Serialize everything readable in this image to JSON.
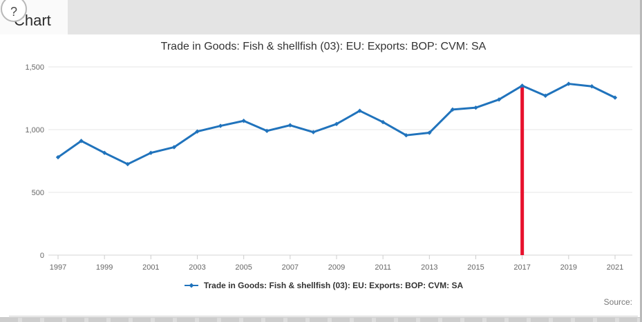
{
  "page": {
    "heading": "Chart",
    "help_icon": "?",
    "source_label": "Source:"
  },
  "chart_data": {
    "type": "line",
    "title": "Trade in Goods: Fish & shellfish (03): EU: Exports: BOP: CVM: SA",
    "legend": "Trade in Goods: Fish & shellfish (03): EU: Exports: BOP: CVM: SA",
    "legend_position": "bottom",
    "xlabel": "",
    "ylabel": "",
    "grid": true,
    "x": [
      1997,
      1998,
      1999,
      2000,
      2001,
      2002,
      2003,
      2004,
      2005,
      2006,
      2007,
      2008,
      2009,
      2010,
      2011,
      2012,
      2013,
      2014,
      2015,
      2016,
      2017,
      2018,
      2019,
      2020,
      2021
    ],
    "values": [
      780,
      910,
      815,
      725,
      815,
      860,
      985,
      1030,
      1070,
      990,
      1035,
      980,
      1045,
      1150,
      1060,
      955,
      975,
      1160,
      1175,
      1240,
      1350,
      1270,
      1365,
      1345,
      1255
    ],
    "xticks": [
      1997,
      1999,
      2001,
      2003,
      2005,
      2007,
      2009,
      2011,
      2013,
      2015,
      2017,
      2019,
      2021
    ],
    "yticks": [
      0,
      500,
      1000,
      1500
    ],
    "ytick_labels": [
      "0",
      "500",
      "1,000",
      "1,500"
    ],
    "ylim": [
      0,
      1500
    ],
    "xlim": [
      1997,
      2021
    ],
    "line_color": "#2073bc",
    "marker": "diamond",
    "grid_color": "#e6e6e6",
    "axis_color": "#cccccc",
    "tick_text_color": "#666666",
    "annotation_line": {
      "x": 2017,
      "y_top": 1350,
      "color": "#e8112d"
    }
  }
}
